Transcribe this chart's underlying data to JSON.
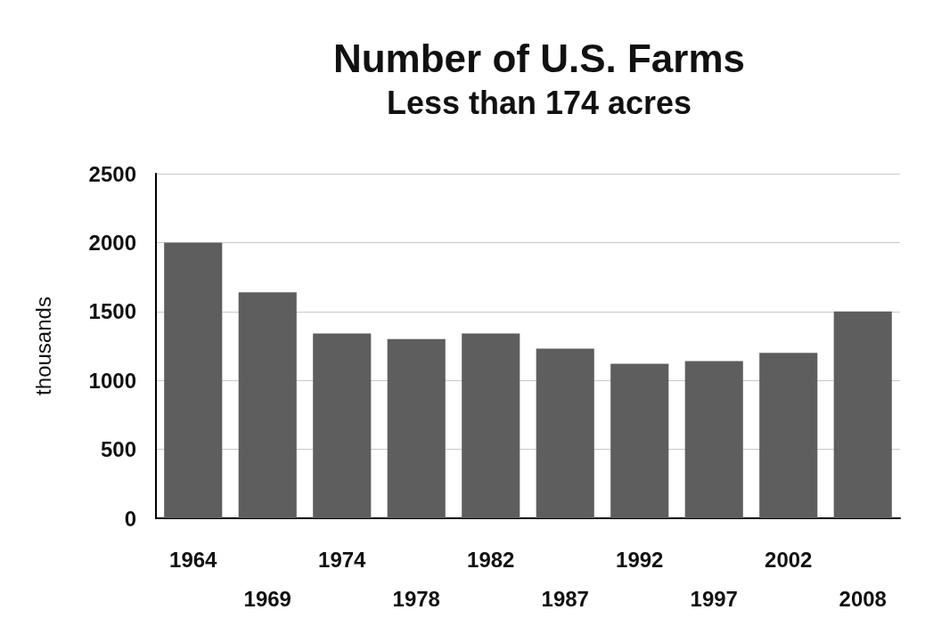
{
  "chart_data": {
    "type": "bar",
    "title": "Number of U.S. Farms",
    "subtitle": "Less than 174 acres",
    "ylabel": "thousands",
    "categories": [
      "1964",
      "1969",
      "1974",
      "1978",
      "1982",
      "1987",
      "1992",
      "1997",
      "2002",
      "2008"
    ],
    "values": [
      2000,
      1640,
      1340,
      1300,
      1340,
      1230,
      1120,
      1140,
      1200,
      1500
    ],
    "color": "#5e5e5e",
    "ylim": [
      0,
      2500
    ],
    "yticks": [
      0,
      500,
      1000,
      1500,
      2000,
      2500
    ],
    "grid": "y"
  }
}
